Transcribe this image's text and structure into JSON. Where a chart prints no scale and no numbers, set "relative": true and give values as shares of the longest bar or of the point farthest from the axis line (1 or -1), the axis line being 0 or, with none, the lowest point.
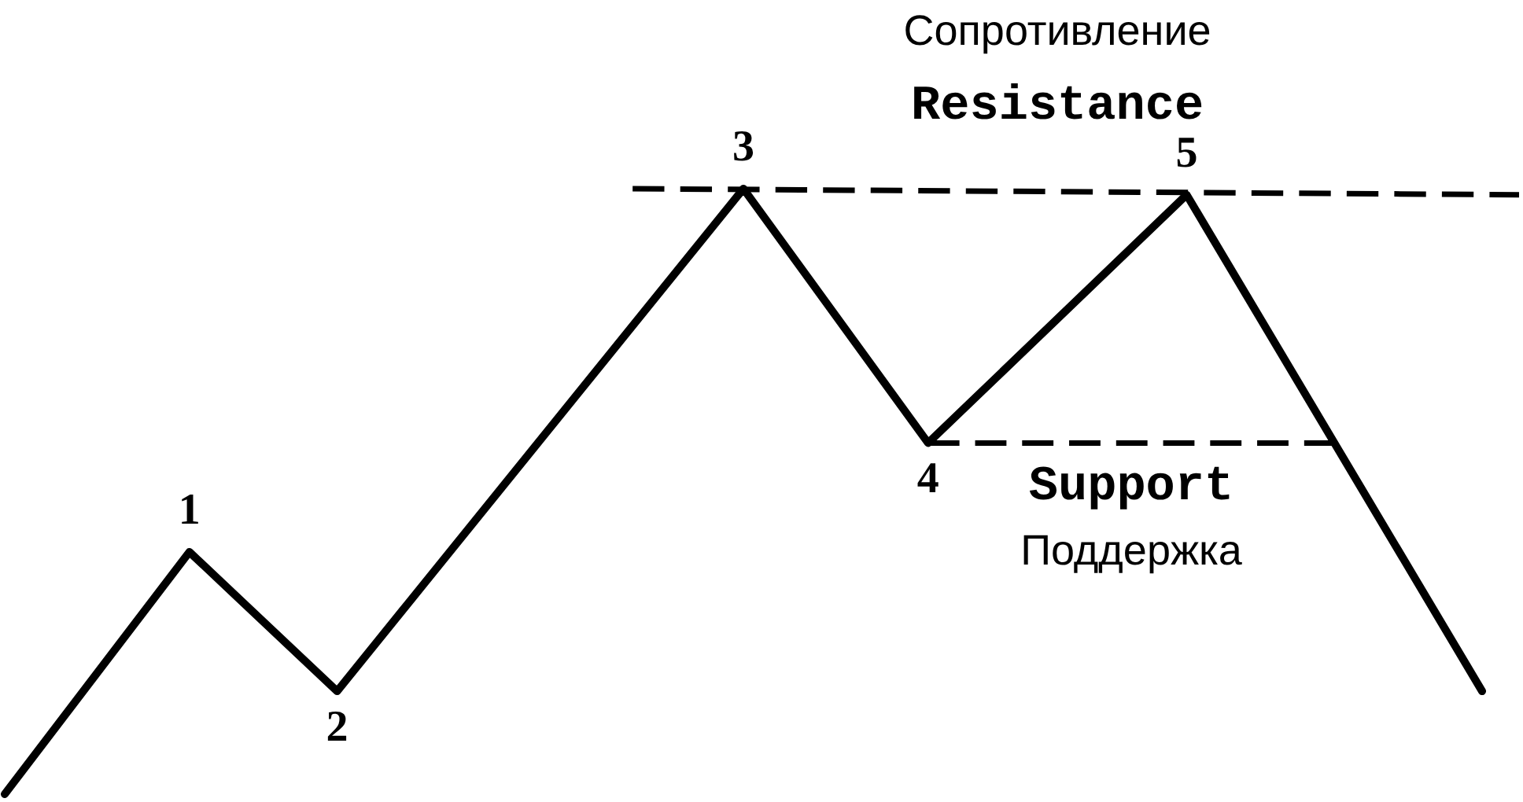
{
  "chart_data": {
    "type": "line",
    "relative": true,
    "grid": false,
    "legend": false,
    "categories": [
      null,
      null,
      null,
      null,
      null,
      null,
      null,
      null,
      null,
      null,
      null,
      null,
      null,
      null,
      null,
      null,
      null,
      null,
      null,
      null,
      null,
      null,
      null,
      null,
      null,
      null,
      null,
      null,
      null,
      null,
      null,
      null,
      null,
      null,
      null,
      null,
      null,
      null,
      null,
      null,
      null,
      null
    ],
    "series": [
      {
        "color": "#000000",
        "values": [
          0,
          null,
          null,
          null,
          null,
          0.4,
          null,
          null,
          null,
          0.17,
          null,
          null,
          null,
          null,
          null,
          null,
          null,
          null,
          null,
          null,
          1,
          null,
          null,
          null,
          null,
          0.58,
          null,
          null,
          null,
          null,
          null,
          null,
          0.99,
          null,
          null,
          null,
          null,
          null,
          null,
          null,
          0.17,
          null
        ]
      },
      {
        "color": "#000000",
        "line_style": "dashed",
        "values": [
          null,
          null,
          null,
          null,
          null,
          null,
          null,
          null,
          null,
          null,
          null,
          null,
          null,
          null,
          null,
          null,
          null,
          1,
          null,
          null,
          null,
          null,
          null,
          null,
          null,
          null,
          null,
          null,
          null,
          null,
          null,
          null,
          null,
          null,
          null,
          null,
          null,
          null,
          null,
          null,
          null,
          0.99
        ]
      },
      {
        "color": "#000000",
        "line_style": "dashed",
        "values": [
          null,
          null,
          null,
          null,
          null,
          null,
          null,
          null,
          null,
          null,
          null,
          null,
          null,
          null,
          null,
          null,
          null,
          null,
          null,
          null,
          null,
          null,
          null,
          null,
          null,
          0.58,
          null,
          null,
          null,
          null,
          null,
          null,
          null,
          null,
          null,
          null,
          0.58,
          null,
          null,
          null,
          null,
          null
        ]
      }
    ],
    "annotations": [
      "1",
      "2",
      "3",
      "4",
      "5",
      "Сопротивление",
      "Resistance",
      "Support",
      "Поддержка"
    ]
  }
}
